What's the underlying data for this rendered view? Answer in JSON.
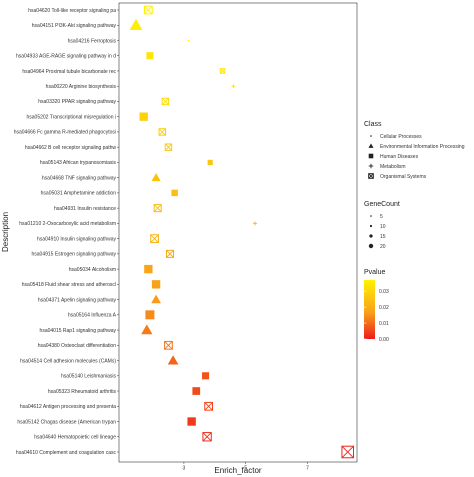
{
  "chart_data": {
    "type": "scatter",
    "xlabel": "Enrich_factor",
    "ylabel": "Description",
    "x_ticks": [
      3,
      5,
      7
    ],
    "xlim": [
      0.9,
      8.6
    ],
    "categories": [
      "hsa04620 Toll-like receptor signaling pa",
      "hsa04151 PI3K-Akt signaling pathway",
      "hsa04216 Ferroptosis",
      "hsa04933 AGE-RAGE signaling pathway in d",
      "hsa04964 Proximal tubule bicarbonate rec",
      "hsa00220 Arginine biosynthesis",
      "hsa03320 PPAR signaling pathway",
      "hsa05202 Transcriptional misregulation i",
      "hsa04666 Fc gamma R-mediated phagocytosi",
      "hsa04662 B cell receptor signaling pathw",
      "hsa05143 African trypanosomiasis",
      "hsa04668 TNF signaling pathway",
      "hsa05031 Amphetamine addiction",
      "hsa04931 Insulin resistance",
      "hsa01210 2-Oxocarboxylic acid metabolism",
      "hsa04910 Insulin signaling pathway",
      "hsa04915 Estrogen signaling pathway",
      "hsa05034 Alcoholism",
      "hsa05418 Fluid shear stress and atheroscl",
      "hsa04371 Apelin signaling pathway",
      "hsa05164 Influenza A",
      "hsa04015 Rap1 signaling pathway",
      "hsa04380 Osteoclast differentiation",
      "hsa04514 Cell adhesion molecules (CAMs)",
      "hsa05140 Leishmaniasis",
      "hsa05323 Rheumatoid arthritis",
      "hsa04612 Antigen processing and presenta",
      "hsa05142 Chagas disease (American trypan",
      "hsa04640 Hematopoietic cell lineage",
      "hsa04610 Complement and coagulation casc"
    ],
    "points": [
      {
        "x": 1.85,
        "class": "Organismal Systems",
        "genecount": 8,
        "pvalue": 0.037
      },
      {
        "x": 1.45,
        "class": "Environmental Information Processing",
        "genecount": 14,
        "pvalue": 0.036
      },
      {
        "x": 3.15,
        "class": "Cellular Processes",
        "genecount": 3,
        "pvalue": 0.035
      },
      {
        "x": 1.9,
        "class": "Human Diseases",
        "genecount": 7,
        "pvalue": 0.034
      },
      {
        "x": 4.25,
        "class": "Organismal Systems",
        "genecount": 3,
        "pvalue": 0.034
      },
      {
        "x": 4.6,
        "class": "Metabolism",
        "genecount": 2,
        "pvalue": 0.033
      },
      {
        "x": 2.4,
        "class": "Organismal Systems",
        "genecount": 6,
        "pvalue": 0.031
      },
      {
        "x": 1.7,
        "class": "Human Diseases",
        "genecount": 9,
        "pvalue": 0.029
      },
      {
        "x": 2.3,
        "class": "Organismal Systems",
        "genecount": 6,
        "pvalue": 0.028
      },
      {
        "x": 2.5,
        "class": "Organismal Systems",
        "genecount": 6,
        "pvalue": 0.027
      },
      {
        "x": 3.85,
        "class": "Human Diseases",
        "genecount": 4,
        "pvalue": 0.026
      },
      {
        "x": 2.1,
        "class": "Environmental Information Processing",
        "genecount": 9,
        "pvalue": 0.025
      },
      {
        "x": 2.7,
        "class": "Human Diseases",
        "genecount": 6,
        "pvalue": 0.024
      },
      {
        "x": 2.15,
        "class": "Organismal Systems",
        "genecount": 7,
        "pvalue": 0.023
      },
      {
        "x": 5.3,
        "class": "Metabolism",
        "genecount": 2,
        "pvalue": 0.022
      },
      {
        "x": 2.05,
        "class": "Organismal Systems",
        "genecount": 8,
        "pvalue": 0.021
      },
      {
        "x": 2.55,
        "class": "Organismal Systems",
        "genecount": 7,
        "pvalue": 0.019
      },
      {
        "x": 1.85,
        "class": "Human Diseases",
        "genecount": 9,
        "pvalue": 0.018
      },
      {
        "x": 2.1,
        "class": "Human Diseases",
        "genecount": 9,
        "pvalue": 0.017
      },
      {
        "x": 2.1,
        "class": "Environmental Information Processing",
        "genecount": 10,
        "pvalue": 0.016
      },
      {
        "x": 1.9,
        "class": "Human Diseases",
        "genecount": 10,
        "pvalue": 0.014
      },
      {
        "x": 1.8,
        "class": "Environmental Information Processing",
        "genecount": 12,
        "pvalue": 0.012
      },
      {
        "x": 2.5,
        "class": "Organismal Systems",
        "genecount": 8,
        "pvalue": 0.011
      },
      {
        "x": 2.65,
        "class": "Environmental Information Processing",
        "genecount": 11,
        "pvalue": 0.009
      },
      {
        "x": 3.7,
        "class": "Human Diseases",
        "genecount": 7,
        "pvalue": 0.007
      },
      {
        "x": 3.4,
        "class": "Human Diseases",
        "genecount": 8,
        "pvalue": 0.006
      },
      {
        "x": 3.8,
        "class": "Organismal Systems",
        "genecount": 8,
        "pvalue": 0.005
      },
      {
        "x": 3.25,
        "class": "Human Diseases",
        "genecount": 9,
        "pvalue": 0.004
      },
      {
        "x": 3.75,
        "class": "Organismal Systems",
        "genecount": 9,
        "pvalue": 0.002
      },
      {
        "x": 8.3,
        "class": "Organismal Systems",
        "genecount": 14,
        "pvalue": 0.001
      }
    ],
    "legend": {
      "class_title": "Class",
      "classes": [
        {
          "label": "Cellular Processes",
          "shape": "dot"
        },
        {
          "label": "Environmental Information Processing",
          "shape": "triangle"
        },
        {
          "label": "Human Diseases",
          "shape": "square"
        },
        {
          "label": "Metabolism",
          "shape": "plus"
        },
        {
          "label": "Organismal Systems",
          "shape": "square-x"
        }
      ],
      "size_title": "GeneCount",
      "sizes": [
        5,
        10,
        15,
        20
      ],
      "size_labels": [
        "5",
        "10",
        "15",
        "20"
      ],
      "color_title": "Pvalue",
      "color_ticks": [
        0.03,
        0.02,
        0.01,
        0.0
      ],
      "color_tick_labels": [
        "0.03",
        "0.02",
        "0.01",
        "0.00"
      ],
      "color_range": [
        0,
        0.037
      ],
      "color_low": "#ee1b1b",
      "color_high": "#fff200",
      "placement": "right"
    },
    "grid": false
  }
}
